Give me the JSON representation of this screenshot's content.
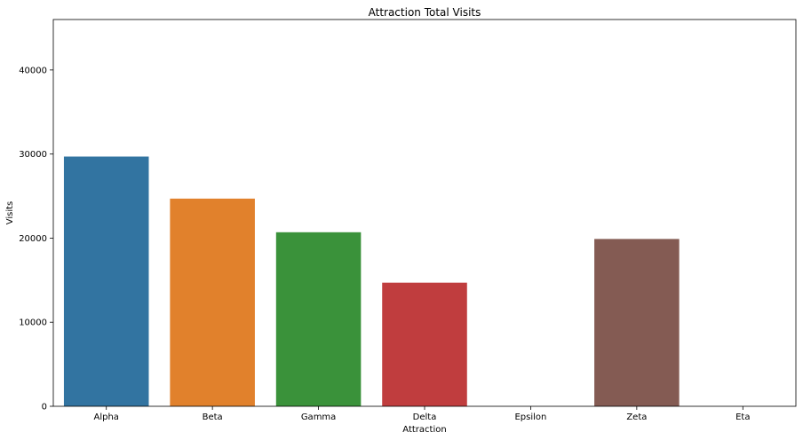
{
  "chart_data": {
    "type": "bar",
    "title": "Attraction Total Visits",
    "xlabel": "Attraction",
    "ylabel": "Visits",
    "categories": [
      "Alpha",
      "Beta",
      "Gamma",
      "Delta",
      "Epsilon",
      "Zeta",
      "Eta"
    ],
    "values": [
      29700,
      24700,
      20700,
      14700,
      0,
      19900,
      0
    ],
    "colors": [
      "#3274a1",
      "#e1812c",
      "#3a923a",
      "#c03d3e",
      "#9372b2",
      "#845b53",
      "#d684bd"
    ],
    "ylim": [
      0,
      46000
    ],
    "yticks": [
      0,
      10000,
      20000,
      30000,
      40000
    ],
    "ytick_labels": [
      "0",
      "10000",
      "20000",
      "30000",
      "40000"
    ],
    "grid": false,
    "legend": "none"
  }
}
